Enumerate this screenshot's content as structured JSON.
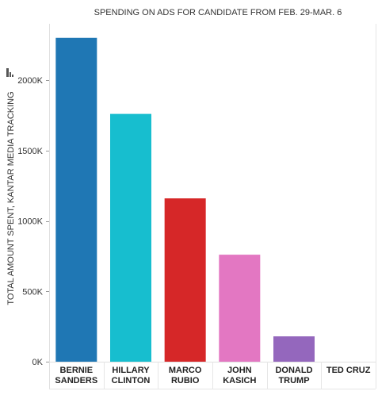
{
  "chart_data": {
    "type": "bar",
    "title": "SPENDING ON ADS FOR CANDIDATE FROM FEB. 29-MAR. 6",
    "xlabel": "",
    "ylabel": "TOTAL AMOUNT SPENT, KANTAR MEDIA TRACKING",
    "categories": [
      [
        "BERNIE",
        "SANDERS"
      ],
      [
        "HILLARY",
        "CLINTON"
      ],
      [
        "MARCO",
        "RUBIO"
      ],
      [
        "JOHN",
        "KASICH"
      ],
      [
        "DONALD",
        "TRUMP"
      ],
      [
        "TED CRUZ"
      ]
    ],
    "values": [
      2300000,
      1760000,
      1160000,
      760000,
      180000,
      0
    ],
    "colors": [
      "#1f77b4",
      "#17becf",
      "#d62728",
      "#e377c2",
      "#9467bd",
      "#7f7f7f"
    ],
    "ylim": [
      0,
      2400000
    ],
    "yticks": [
      0,
      500000,
      1000000,
      1500000,
      2000000
    ],
    "ytick_labels": [
      "0K",
      "500K",
      "1000K",
      "1500K",
      "2000K"
    ],
    "grid": false,
    "legend": "none"
  }
}
